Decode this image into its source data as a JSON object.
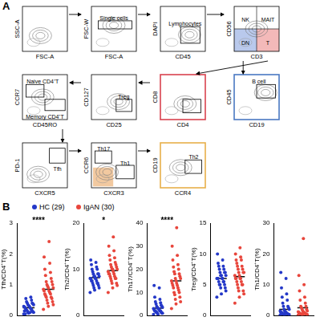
{
  "panel_a": {
    "label": "A",
    "plots": [
      {
        "x_label": "FSC-A",
        "y_label": "SSC-A",
        "gates": []
      },
      {
        "x_label": "FSC-A",
        "y_label": "FSC-W",
        "gates": [
          "Single cells"
        ]
      },
      {
        "x_label": "CD45",
        "y_label": "DAPI",
        "gates": [
          "Lymphocytes"
        ]
      },
      {
        "x_label": "CD3",
        "y_label": "CD56",
        "gates": [
          "NK",
          "MAIT",
          "DN",
          "T"
        ]
      },
      {
        "x_label": "CD45RO",
        "y_label": "CCR7",
        "gates": [
          "Naive CD4⁺T",
          "Memory CD4⁺T"
        ]
      },
      {
        "x_label": "CD25",
        "y_label": "CD127",
        "gates": [
          "Treg"
        ]
      },
      {
        "x_label": "CD4",
        "y_label": "CD8",
        "gates": [],
        "color": "#d9434f"
      },
      {
        "x_label": "CD19",
        "y_label": "CD45",
        "gates": [
          "B cell"
        ],
        "color": "#4a78c2"
      },
      {
        "x_label": "CXCR5",
        "y_label": "PD-1",
        "gates": [
          "Tfh"
        ]
      },
      {
        "x_label": "CXCR3",
        "y_label": "CCR6",
        "gates": [
          "Th17",
          "Th1"
        ]
      },
      {
        "x_label": "CCR4",
        "y_label": "CD19",
        "gates": [
          "Th2"
        ],
        "color": "#e8b04a"
      }
    ]
  },
  "panel_b": {
    "label": "B"
  },
  "chart_data": [
    {
      "type": "strip",
      "y_label": "Tfh/CD4⁺T(%)",
      "annotation": "****",
      "ylim": [
        0,
        3
      ],
      "yticks": [
        0,
        1,
        2,
        3
      ],
      "grid": false,
      "tick_labels": "y",
      "series": [
        {
          "name": "HC (29)",
          "color": "#2438c8",
          "mean": 0.25,
          "values": [
            0.05,
            0.08,
            0.1,
            0.1,
            0.12,
            0.15,
            0.15,
            0.18,
            0.2,
            0.2,
            0.22,
            0.25,
            0.25,
            0.28,
            0.3,
            0.3,
            0.32,
            0.35,
            0.35,
            0.38,
            0.4,
            0.4,
            0.45,
            0.5,
            0.55,
            0.6,
            0.05,
            0.1,
            0.15
          ]
        },
        {
          "name": "IgAN (30)",
          "color": "#e8463c",
          "mean": 0.85,
          "values": [
            0.2,
            0.3,
            0.35,
            0.4,
            0.45,
            0.5,
            0.55,
            0.6,
            0.6,
            0.65,
            0.7,
            0.7,
            0.75,
            0.8,
            0.8,
            0.85,
            0.9,
            0.9,
            0.95,
            1.0,
            1.0,
            1.1,
            1.1,
            1.2,
            1.3,
            1.4,
            1.5,
            1.7,
            1.9,
            2.4
          ]
        }
      ]
    },
    {
      "type": "strip",
      "y_label": "Th2/CD4⁺T(%)",
      "annotation": "*",
      "ylim": [
        0,
        20
      ],
      "yticks": [
        0,
        10,
        20
      ],
      "grid": false,
      "tick_labels": "y",
      "series": [
        {
          "name": "HC (29)",
          "color": "#2438c8",
          "mean": 8.2,
          "values": [
            5,
            5.5,
            6,
            6,
            6.5,
            6.5,
            7,
            7,
            7,
            7.5,
            7.5,
            7.5,
            8,
            8,
            8,
            8,
            8.5,
            8.5,
            8.5,
            9,
            9,
            9,
            9.5,
            10,
            10,
            10.5,
            11,
            11.5,
            12
          ]
        },
        {
          "name": "IgAN (30)",
          "color": "#e8463c",
          "mean": 9.7,
          "values": [
            5,
            6,
            6.5,
            7,
            7,
            7.5,
            8,
            8,
            8,
            8.5,
            8.5,
            9,
            9,
            9,
            9.5,
            9.5,
            10,
            10,
            10,
            10.5,
            10.5,
            11,
            11,
            11.5,
            12,
            12.5,
            13,
            14,
            15,
            17
          ]
        }
      ]
    },
    {
      "type": "strip",
      "y_label": "Th17/CD4⁺T(%)",
      "annotation": "****",
      "ylim": [
        0,
        40
      ],
      "yticks": [
        0,
        10,
        20,
        30,
        40
      ],
      "grid": false,
      "tick_labels": "y",
      "series": [
        {
          "name": "HC (29)",
          "color": "#2438c8",
          "mean": 3.2,
          "values": [
            0.5,
            0.5,
            1,
            1,
            1,
            1.5,
            1.5,
            1.5,
            2,
            2,
            2,
            2,
            2.5,
            2.5,
            3,
            3,
            3,
            3.5,
            3.5,
            4,
            4,
            4.5,
            5,
            5.5,
            6,
            7,
            8,
            12,
            13
          ]
        },
        {
          "name": "IgAN (30)",
          "color": "#e8463c",
          "mean": 15,
          "values": [
            3,
            5,
            6,
            7,
            8,
            9,
            10,
            10,
            11,
            12,
            12,
            13,
            13,
            14,
            14,
            15,
            15,
            16,
            16,
            17,
            18,
            18,
            19,
            20,
            21,
            22,
            24,
            26,
            30,
            38
          ]
        }
      ]
    },
    {
      "type": "strip",
      "y_label": "Treg/CD4⁺T(%)",
      "ylim": [
        0,
        15
      ],
      "yticks": [
        0,
        5,
        10,
        15
      ],
      "grid": false,
      "tick_labels": "y",
      "series": [
        {
          "name": "HC (29)",
          "color": "#2438c8",
          "mean": 6.0,
          "values": [
            3,
            3.5,
            4,
            4.5,
            4.5,
            5,
            5,
            5,
            5.5,
            5.5,
            5.5,
            6,
            6,
            6,
            6,
            6,
            6.5,
            6.5,
            6.5,
            7,
            7,
            7,
            7.5,
            7.5,
            8,
            8,
            8.5,
            9,
            10
          ]
        },
        {
          "name": "IgAN (30)",
          "color": "#e8463c",
          "mean": 6.3,
          "values": [
            2,
            3,
            3.5,
            4,
            4,
            4.5,
            5,
            5,
            5,
            5.5,
            5.5,
            6,
            6,
            6,
            6,
            6.5,
            6.5,
            7,
            7,
            7,
            7.5,
            7.5,
            8,
            8,
            8.5,
            9,
            9,
            9.5,
            10,
            11
          ]
        }
      ]
    },
    {
      "type": "strip",
      "y_label": "Th1/CD4⁺T(%)",
      "ylim": [
        0,
        30
      ],
      "yticks": [
        0,
        10,
        20,
        30
      ],
      "grid": false,
      "tick_labels": "y",
      "series": [
        {
          "name": "HC (29)",
          "color": "#2438c8",
          "mean": 2.0,
          "values": [
            0.2,
            0.2,
            0.3,
            0.3,
            0.4,
            0.5,
            0.5,
            0.5,
            0.6,
            0.8,
            0.8,
            1,
            1,
            1,
            1.2,
            1.5,
            1.5,
            2,
            2,
            2.5,
            3,
            3,
            4,
            5,
            6,
            7,
            9,
            12,
            14
          ]
        },
        {
          "name": "IgAN (30)",
          "color": "#e8463c",
          "mean": 2.5,
          "values": [
            0.2,
            0.2,
            0.3,
            0.3,
            0.4,
            0.4,
            0.5,
            0.5,
            0.6,
            0.6,
            0.8,
            0.8,
            1,
            1,
            1,
            1.2,
            1.5,
            1.5,
            2,
            2,
            2.5,
            3,
            3,
            4,
            5,
            6,
            8,
            10,
            13,
            25
          ]
        }
      ]
    }
  ]
}
